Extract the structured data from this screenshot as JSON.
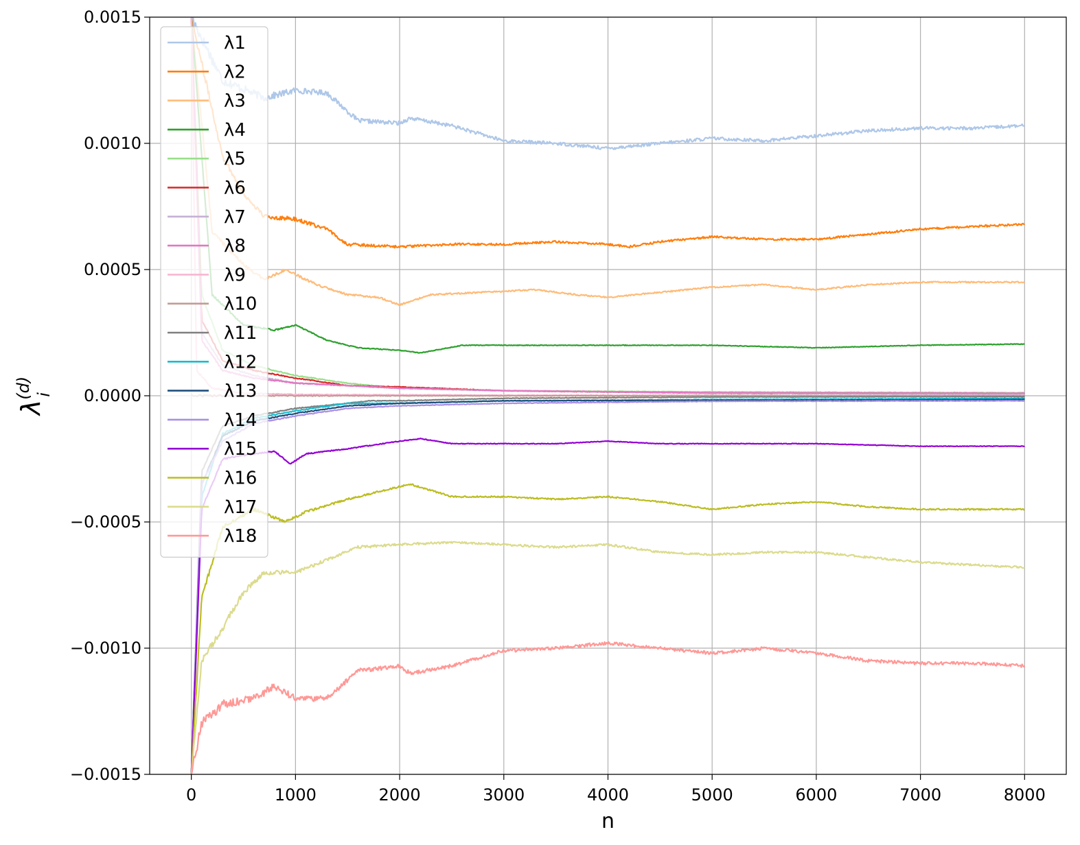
{
  "chart_data": {
    "type": "line",
    "xlabel": "n",
    "ylabel": {
      "base": "λ",
      "sup": "(d)",
      "sub": "i"
    },
    "xlim": [
      -400,
      8400
    ],
    "ylim": [
      -0.0015,
      0.0015
    ],
    "grid": true,
    "legend_position": "upper-left",
    "xticks": [
      0,
      1000,
      2000,
      3000,
      4000,
      5000,
      6000,
      7000,
      8000
    ],
    "xtick_labels": [
      "0",
      "1000",
      "2000",
      "3000",
      "4000",
      "5000",
      "6000",
      "7000",
      "8000"
    ],
    "yticks": [
      -0.0015,
      -0.001,
      -0.0005,
      0,
      0.0005,
      0.001,
      0.0015
    ],
    "ytick_labels": [
      "−0.0015",
      "−0.0010",
      "−0.0005",
      "0.0000",
      "0.0005",
      "0.0010",
      "0.0015"
    ],
    "series": [
      {
        "name": "λ1",
        "color": "#aec7e8",
        "points": [
          [
            0,
            0.0015
          ],
          [
            300,
            0.00125
          ],
          [
            700,
            0.00118
          ],
          [
            1000,
            0.00121
          ],
          [
            1300,
            0.0012
          ],
          [
            1600,
            0.00109
          ],
          [
            2000,
            0.00108
          ],
          [
            2100,
            0.0011
          ],
          [
            2500,
            0.00107
          ],
          [
            3000,
            0.00101
          ],
          [
            3500,
            0.001
          ],
          [
            4000,
            0.00098
          ],
          [
            4500,
            0.001
          ],
          [
            5000,
            0.00102
          ],
          [
            5500,
            0.00101
          ],
          [
            6000,
            0.00103
          ],
          [
            6500,
            0.00105
          ],
          [
            7000,
            0.00106
          ],
          [
            7500,
            0.00106
          ],
          [
            8000,
            0.00107
          ]
        ]
      },
      {
        "name": "λ2",
        "color": "#ff7f0e",
        "points": [
          [
            0,
            0.0015
          ],
          [
            300,
            0.00095
          ],
          [
            500,
            0.0008
          ],
          [
            700,
            0.00071
          ],
          [
            1000,
            0.0007
          ],
          [
            1300,
            0.00066
          ],
          [
            1500,
            0.0006
          ],
          [
            2000,
            0.00059
          ],
          [
            2500,
            0.0006
          ],
          [
            3000,
            0.0006
          ],
          [
            3500,
            0.00061
          ],
          [
            4000,
            0.0006
          ],
          [
            4200,
            0.00059
          ],
          [
            4500,
            0.00061
          ],
          [
            5000,
            0.00063
          ],
          [
            5500,
            0.00062
          ],
          [
            6000,
            0.00062
          ],
          [
            6500,
            0.00064
          ],
          [
            7000,
            0.00066
          ],
          [
            7500,
            0.00067
          ],
          [
            8000,
            0.00068
          ]
        ]
      },
      {
        "name": "λ3",
        "color": "#ffbb78",
        "points": [
          [
            0,
            0.0015
          ],
          [
            200,
            0.00065
          ],
          [
            500,
            0.00052
          ],
          [
            700,
            0.00046
          ],
          [
            900,
            0.0005
          ],
          [
            1200,
            0.00044
          ],
          [
            1500,
            0.0004
          ],
          [
            1800,
            0.00039
          ],
          [
            2000,
            0.00036
          ],
          [
            2300,
            0.0004
          ],
          [
            2800,
            0.00041
          ],
          [
            3300,
            0.00042
          ],
          [
            3700,
            0.0004
          ],
          [
            4000,
            0.00039
          ],
          [
            4500,
            0.00041
          ],
          [
            5000,
            0.00043
          ],
          [
            5500,
            0.00044
          ],
          [
            6000,
            0.00042
          ],
          [
            6500,
            0.00044
          ],
          [
            7000,
            0.00045
          ],
          [
            8000,
            0.00045
          ]
        ]
      },
      {
        "name": "λ4",
        "color": "#2ca02c",
        "points": [
          [
            0,
            0.0015
          ],
          [
            200,
            0.0004
          ],
          [
            500,
            0.00028
          ],
          [
            800,
            0.00026
          ],
          [
            1000,
            0.00028
          ],
          [
            1300,
            0.00022
          ],
          [
            1600,
            0.00019
          ],
          [
            2000,
            0.00018
          ],
          [
            2200,
            0.00017
          ],
          [
            2600,
            0.0002
          ],
          [
            3000,
            0.0002
          ],
          [
            3500,
            0.0002
          ],
          [
            4000,
            0.0002
          ],
          [
            4500,
            0.0002
          ],
          [
            5000,
            0.0002
          ],
          [
            6000,
            0.00019
          ],
          [
            7000,
            0.0002
          ],
          [
            8000,
            0.000205
          ]
        ]
      },
      {
        "name": "λ5",
        "color": "#98df8a",
        "points": [
          [
            0,
            0.0015
          ],
          [
            100,
            0.0004
          ],
          [
            300,
            0.00018
          ],
          [
            600,
            0.00012
          ],
          [
            1000,
            8e-05
          ],
          [
            1500,
            5e-05
          ],
          [
            2000,
            3e-05
          ],
          [
            3000,
            2e-05
          ],
          [
            5000,
            1.5e-05
          ],
          [
            8000,
            1.2e-05
          ]
        ]
      },
      {
        "name": "λ6",
        "color": "#d62728",
        "points": [
          [
            0,
            0.0015
          ],
          [
            100,
            0.0003
          ],
          [
            300,
            0.00014
          ],
          [
            600,
            0.0001
          ],
          [
            1000,
            7e-05
          ],
          [
            1500,
            4e-05
          ],
          [
            2000,
            3.5e-05
          ],
          [
            3000,
            2e-05
          ],
          [
            5000,
            1e-05
          ],
          [
            8000,
            8e-06
          ]
        ]
      },
      {
        "name": "λ7",
        "color": "#c5b0d5",
        "points": [
          [
            0,
            0.0015
          ],
          [
            100,
            0.00025
          ],
          [
            300,
            0.00012
          ],
          [
            600,
            8e-05
          ],
          [
            1000,
            5e-05
          ],
          [
            1500,
            4e-05
          ],
          [
            2000,
            3e-05
          ],
          [
            3000,
            2e-05
          ],
          [
            5000,
            1e-05
          ],
          [
            8000,
            6e-06
          ]
        ]
      },
      {
        "name": "λ8",
        "color": "#e377c2",
        "points": [
          [
            0,
            0.0015
          ],
          [
            100,
            0.00022
          ],
          [
            300,
            0.0001
          ],
          [
            600,
            7e-05
          ],
          [
            1000,
            5e-05
          ],
          [
            1500,
            4e-05
          ],
          [
            2000,
            3e-05
          ],
          [
            3000,
            2e-05
          ],
          [
            5000,
            1.2e-05
          ],
          [
            8000,
            1e-05
          ]
        ]
      },
      {
        "name": "λ9",
        "color": "#f7b6d2",
        "points": [
          [
            0,
            0.0015
          ],
          [
            50,
            0.0001
          ],
          [
            200,
            3e-05
          ],
          [
            500,
            1e-05
          ],
          [
            1000,
            5e-06
          ],
          [
            3000,
            2e-06
          ],
          [
            8000,
            1e-06
          ]
        ]
      },
      {
        "name": "λ10",
        "color": "#c49c94",
        "points": [
          [
            0,
            0.0
          ],
          [
            2000,
            0.0
          ],
          [
            4000,
            0.0
          ],
          [
            6000,
            0.0
          ],
          [
            8000,
            0.0
          ]
        ]
      },
      {
        "name": "λ11",
        "color": "#7f7f7f",
        "points": [
          [
            0,
            -0.0015
          ],
          [
            100,
            -0.0003
          ],
          [
            300,
            -0.00012
          ],
          [
            600,
            -8e-05
          ],
          [
            1000,
            -5e-05
          ],
          [
            1500,
            -3e-05
          ],
          [
            1700,
            -2e-05
          ],
          [
            2000,
            -2e-05
          ],
          [
            3000,
            -1e-05
          ],
          [
            5000,
            -5e-06
          ],
          [
            8000,
            -3e-06
          ]
        ]
      },
      {
        "name": "λ12",
        "color": "#17becf",
        "points": [
          [
            0,
            -0.0015
          ],
          [
            100,
            -0.0004
          ],
          [
            300,
            -0.00015
          ],
          [
            600,
            -9e-05
          ],
          [
            1000,
            -6e-05
          ],
          [
            1500,
            -3e-05
          ],
          [
            2000,
            -3e-05
          ],
          [
            3000,
            -2e-05
          ],
          [
            5000,
            -1.5e-05
          ],
          [
            8000,
            -1e-05
          ]
        ]
      },
      {
        "name": "λ13",
        "color": "#1f4e7a",
        "points": [
          [
            0,
            -0.0015
          ],
          [
            100,
            -0.00035
          ],
          [
            300,
            -0.00016
          ],
          [
            600,
            -0.0001
          ],
          [
            1000,
            -7e-05
          ],
          [
            1500,
            -4e-05
          ],
          [
            2000,
            -3e-05
          ],
          [
            3000,
            -2e-05
          ],
          [
            5000,
            -1.8e-05
          ],
          [
            8000,
            -1.5e-05
          ]
        ]
      },
      {
        "name": "λ14",
        "color": "#a98ee6",
        "points": [
          [
            0,
            -0.0015
          ],
          [
            100,
            -0.00035
          ],
          [
            300,
            -0.00018
          ],
          [
            600,
            -0.00011
          ],
          [
            1000,
            -8e-05
          ],
          [
            1500,
            -5e-05
          ],
          [
            2000,
            -4e-05
          ],
          [
            3000,
            -3e-05
          ],
          [
            5000,
            -2.2e-05
          ],
          [
            8000,
            -2e-05
          ]
        ]
      },
      {
        "name": "λ15",
        "color": "#9400d3",
        "points": [
          [
            0,
            -0.0015
          ],
          [
            100,
            -0.00045
          ],
          [
            300,
            -0.00025
          ],
          [
            600,
            -0.00023
          ],
          [
            800,
            -0.00022
          ],
          [
            950,
            -0.00027
          ],
          [
            1100,
            -0.00023
          ],
          [
            1500,
            -0.00021
          ],
          [
            2000,
            -0.00018
          ],
          [
            2200,
            -0.00017
          ],
          [
            2500,
            -0.00019
          ],
          [
            3000,
            -0.00019
          ],
          [
            3500,
            -0.00019
          ],
          [
            4000,
            -0.00018
          ],
          [
            4500,
            -0.00019
          ],
          [
            5000,
            -0.00019
          ],
          [
            6000,
            -0.00019
          ],
          [
            7000,
            -0.0002
          ],
          [
            8000,
            -0.0002
          ]
        ]
      },
      {
        "name": "λ16",
        "color": "#bcbd22",
        "points": [
          [
            0,
            -0.0015
          ],
          [
            100,
            -0.0008
          ],
          [
            300,
            -0.00052
          ],
          [
            600,
            -0.00045
          ],
          [
            900,
            -0.0005
          ],
          [
            1100,
            -0.00046
          ],
          [
            1500,
            -0.00041
          ],
          [
            2000,
            -0.00036
          ],
          [
            2100,
            -0.00035
          ],
          [
            2500,
            -0.0004
          ],
          [
            3000,
            -0.0004
          ],
          [
            3500,
            -0.00041
          ],
          [
            4000,
            -0.0004
          ],
          [
            4500,
            -0.00042
          ],
          [
            5000,
            -0.00045
          ],
          [
            5500,
            -0.00043
          ],
          [
            6000,
            -0.00042
          ],
          [
            6500,
            -0.00044
          ],
          [
            7000,
            -0.00045
          ],
          [
            8000,
            -0.00045
          ]
        ]
      },
      {
        "name": "λ17",
        "color": "#dbdb8d",
        "points": [
          [
            0,
            -0.0015
          ],
          [
            100,
            -0.00105
          ],
          [
            300,
            -0.00092
          ],
          [
            500,
            -0.00078
          ],
          [
            700,
            -0.0007
          ],
          [
            1000,
            -0.0007
          ],
          [
            1300,
            -0.00065
          ],
          [
            1600,
            -0.0006
          ],
          [
            2000,
            -0.00059
          ],
          [
            2500,
            -0.00058
          ],
          [
            3000,
            -0.00059
          ],
          [
            3500,
            -0.0006
          ],
          [
            4000,
            -0.00059
          ],
          [
            4500,
            -0.00062
          ],
          [
            5000,
            -0.00063
          ],
          [
            5500,
            -0.00062
          ],
          [
            6000,
            -0.00062
          ],
          [
            6500,
            -0.00064
          ],
          [
            7000,
            -0.00066
          ],
          [
            8000,
            -0.00068
          ]
        ]
      },
      {
        "name": "λ18",
        "color": "#ff9896",
        "points": [
          [
            0,
            -0.0015
          ],
          [
            100,
            -0.0013
          ],
          [
            300,
            -0.00122
          ],
          [
            600,
            -0.0012
          ],
          [
            800,
            -0.00115
          ],
          [
            1000,
            -0.0012
          ],
          [
            1300,
            -0.0012
          ],
          [
            1600,
            -0.00109
          ],
          [
            2000,
            -0.00107
          ],
          [
            2100,
            -0.0011
          ],
          [
            2500,
            -0.00107
          ],
          [
            3000,
            -0.00101
          ],
          [
            3500,
            -0.001
          ],
          [
            4000,
            -0.00098
          ],
          [
            4500,
            -0.001
          ],
          [
            5000,
            -0.00102
          ],
          [
            5500,
            -0.001
          ],
          [
            6000,
            -0.00102
          ],
          [
            6500,
            -0.00105
          ],
          [
            7000,
            -0.00106
          ],
          [
            7500,
            -0.00106
          ],
          [
            8000,
            -0.00107
          ]
        ]
      }
    ]
  }
}
